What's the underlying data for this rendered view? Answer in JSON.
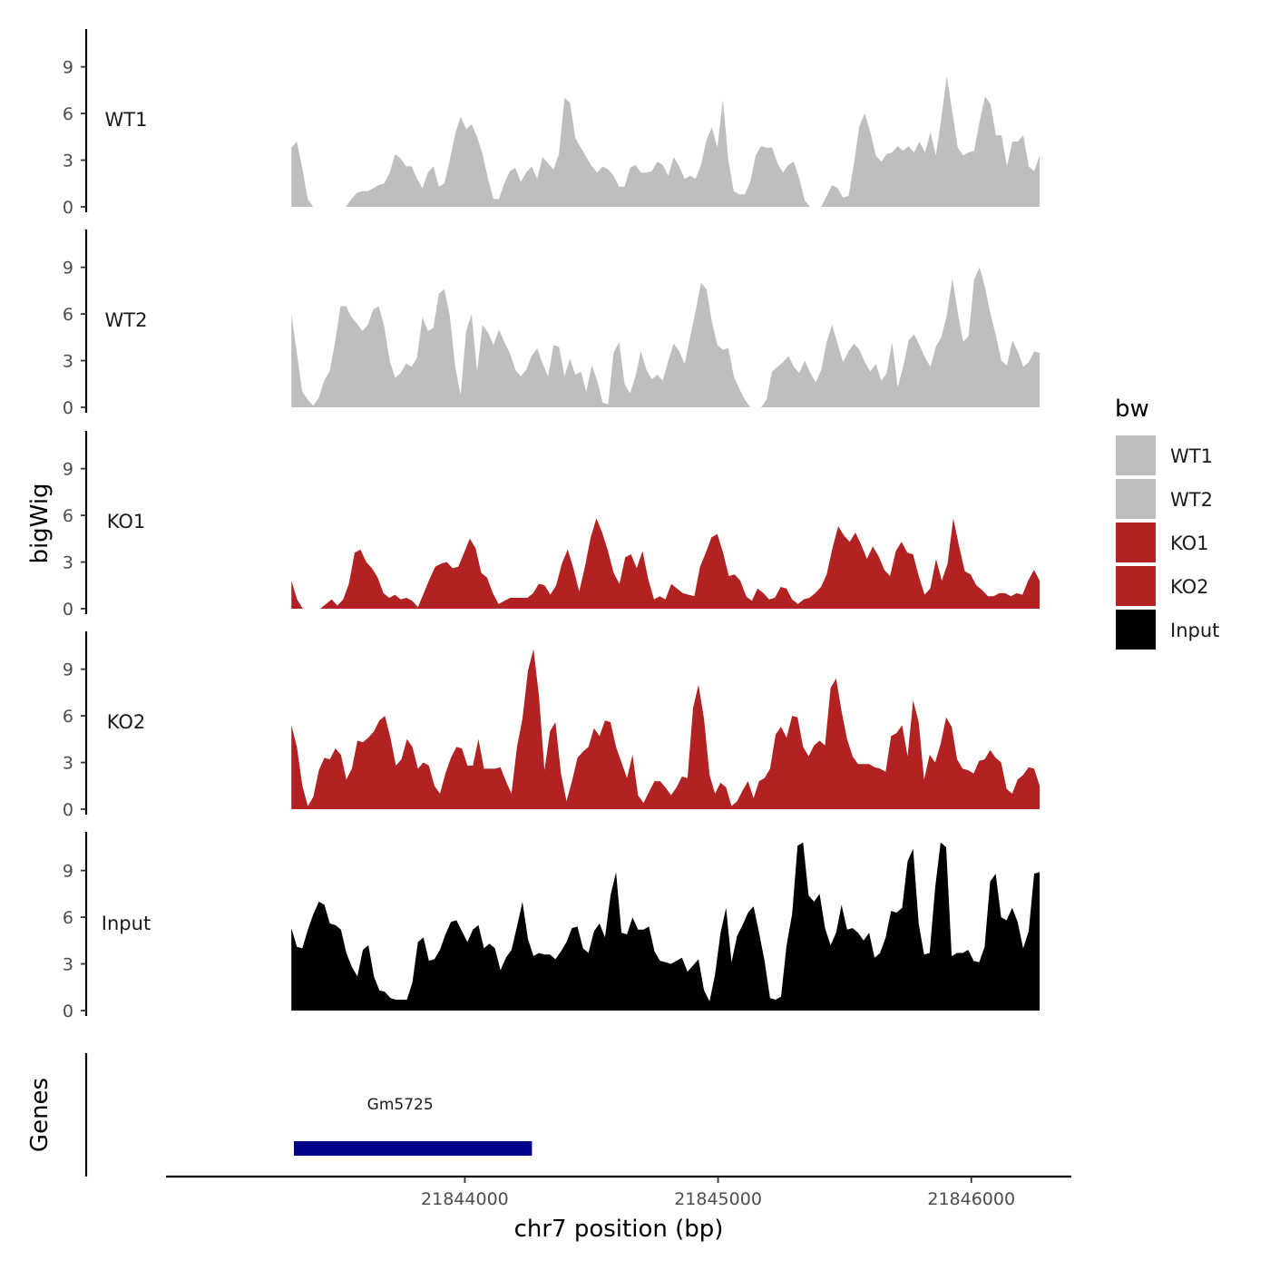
{
  "chart_data": {
    "type": "area",
    "ylabel": "bigWig",
    "genes_label": "Genes",
    "xlabel": "chr7 position (bp)",
    "x_range": [
      21843315,
      21846270
    ],
    "xlim": [
      21842820,
      21846395
    ],
    "ylim": [
      0,
      11.5
    ],
    "x_ticks": [
      21844000,
      21845000,
      21846000
    ],
    "x_tick_labels": [
      "21844000",
      "21845000",
      "21846000"
    ],
    "y_ticks": [
      0,
      3,
      6,
      9
    ],
    "y_tick_labels": [
      "0",
      "3",
      "6",
      "9"
    ],
    "legend_title": "bw",
    "legend": [
      {
        "label": "WT1",
        "color": "#bebebe"
      },
      {
        "label": "WT2",
        "color": "#bebebe"
      },
      {
        "label": "KO1",
        "color": "#b22222"
      },
      {
        "label": "KO2",
        "color": "#b22222"
      },
      {
        "label": "Input",
        "color": "#000000"
      }
    ],
    "series": [
      {
        "name": "WT1",
        "color": "#bebebe",
        "values": [
          3.8,
          4.2,
          2.5,
          0.5,
          0,
          0,
          0,
          0,
          0,
          0,
          0,
          0.5,
          0.9,
          1.0,
          1.0,
          1.2,
          1.4,
          1.5,
          2.2,
          3.4,
          3.1,
          2.6,
          2.6,
          1.8,
          1.2,
          2.2,
          2.6,
          1.3,
          1.5,
          3.0,
          4.7,
          5.8,
          5.0,
          5.3,
          4.5,
          3.4,
          1.8,
          0.5,
          0.5,
          1.5,
          2.3,
          2.5,
          1.6,
          2.2,
          2.6,
          1.8,
          3.2,
          2.8,
          2.4,
          3.4,
          7.0,
          6.7,
          4.4,
          3.8,
          3.2,
          2.6,
          2.2,
          2.6,
          2.4,
          2.0,
          1.3,
          1.3,
          2.5,
          2.7,
          2.2,
          2.2,
          2.3,
          2.9,
          2.7,
          2.0,
          3.2,
          2.6,
          1.8,
          2.0,
          1.8,
          2.7,
          4.3,
          5.1,
          3.8,
          6.9,
          3.0,
          1.0,
          0.8,
          0.8,
          1.6,
          3.3,
          3.9,
          3.8,
          3.8,
          2.8,
          2.2,
          2.7,
          2.9,
          1.8,
          0.4,
          0,
          0,
          0,
          0.7,
          1.4,
          1.2,
          0.6,
          0.7,
          2.8,
          5.2,
          6.0,
          4.8,
          3.3,
          2.9,
          3.4,
          3.5,
          3.9,
          3.6,
          3.9,
          3.5,
          4.2,
          3.5,
          4.8,
          3.3,
          5.7,
          8.4,
          6.1,
          3.8,
          3.3,
          3.5,
          3.6,
          5.5,
          7.1,
          6.6,
          4.6,
          4.6,
          2.6,
          4.2,
          4.2,
          4.6,
          2.6,
          2.3,
          3.3
        ]
      },
      {
        "name": "WT2",
        "color": "#bebebe",
        "values": [
          6.0,
          3.5,
          1.0,
          0.5,
          0.1,
          0.6,
          1.7,
          2.3,
          4.2,
          6.5,
          6.5,
          5.8,
          5.4,
          4.9,
          5.3,
          6.3,
          6.5,
          5.2,
          3.0,
          1.9,
          2.2,
          2.8,
          2.6,
          3.2,
          5.8,
          4.9,
          5.1,
          7.3,
          7.6,
          5.9,
          2.6,
          0.8,
          4.9,
          6.0,
          2.3,
          5.3,
          4.8,
          4.0,
          5.0,
          4.2,
          3.5,
          2.4,
          2.0,
          2.4,
          3.3,
          3.8,
          2.8,
          2.0,
          4.0,
          3.9,
          2.0,
          3.1,
          2.1,
          2.3,
          1.0,
          2.7,
          1.7,
          0.3,
          0.2,
          3.5,
          4.2,
          1.5,
          0.9,
          2.0,
          3.6,
          2.4,
          1.8,
          2.1,
          1.7,
          3.0,
          4.1,
          3.6,
          2.8,
          4.5,
          6.2,
          8.0,
          7.6,
          5.5,
          4.0,
          3.7,
          3.8,
          2.0,
          1.2,
          0.5,
          0,
          0,
          0,
          0.5,
          2.3,
          2.6,
          2.9,
          3.3,
          2.6,
          2.2,
          3.0,
          2.2,
          1.6,
          2.4,
          4.2,
          5.3,
          4.1,
          2.9,
          3.6,
          4.1,
          3.7,
          2.9,
          2.3,
          2.8,
          1.7,
          2.2,
          4.2,
          1.3,
          2.6,
          4.3,
          4.7,
          4.0,
          3.2,
          2.6,
          3.9,
          4.5,
          5.9,
          8.3,
          6.1,
          4.2,
          4.6,
          8.2,
          9.0,
          7.7,
          6.0,
          4.6,
          3.0,
          2.7,
          4.3,
          3.6,
          2.6,
          2.9,
          3.6,
          3.5
        ]
      },
      {
        "name": "KO1",
        "color": "#b22222",
        "values": [
          1.8,
          0.6,
          0,
          0,
          0,
          0,
          0.3,
          0.6,
          0.2,
          0.6,
          1.6,
          3.6,
          3.8,
          3.0,
          2.6,
          2.0,
          1.0,
          0.7,
          0.9,
          0.6,
          0.7,
          0.5,
          0.1,
          1.0,
          1.9,
          2.7,
          2.9,
          3.0,
          2.6,
          2.7,
          3.6,
          4.5,
          3.9,
          2.3,
          2.0,
          1.0,
          0.3,
          0.5,
          0.7,
          0.7,
          0.7,
          0.7,
          1.0,
          1.6,
          1.5,
          0.9,
          1.5,
          2.9,
          3.8,
          2.6,
          1.1,
          2.7,
          4.6,
          5.8,
          4.9,
          3.7,
          2.3,
          1.6,
          3.3,
          3.5,
          2.6,
          3.7,
          1.9,
          0.6,
          0.8,
          0.6,
          1.6,
          1.3,
          1.0,
          0.9,
          0.8,
          2.7,
          3.6,
          4.6,
          4.8,
          3.6,
          2.1,
          2.2,
          1.8,
          0.8,
          0.5,
          1.3,
          1.0,
          0.6,
          0.7,
          1.4,
          1.3,
          0.6,
          0.3,
          0.6,
          0.7,
          1.0,
          1.4,
          2.2,
          3.9,
          5.3,
          4.7,
          4.3,
          4.9,
          4.1,
          3.2,
          4.0,
          3.4,
          2.5,
          2.1,
          3.7,
          4.3,
          3.6,
          3.5,
          2.1,
          0.9,
          1.3,
          3.2,
          1.8,
          2.9,
          5.8,
          4.0,
          2.4,
          2.2,
          1.5,
          1.2,
          0.8,
          0.8,
          1.0,
          1.0,
          0.8,
          1.0,
          0.9,
          1.8,
          2.5,
          1.8
        ]
      },
      {
        "name": "KO2",
        "color": "#b22222",
        "values": [
          5.4,
          4.0,
          1.5,
          0.2,
          0.8,
          2.5,
          3.3,
          3.2,
          3.9,
          3.5,
          1.9,
          2.6,
          4.4,
          4.3,
          4.6,
          5.0,
          5.7,
          6.0,
          4.6,
          2.8,
          3.2,
          4.5,
          4.0,
          2.6,
          3.0,
          2.8,
          1.5,
          1.0,
          2.3,
          3.3,
          4.0,
          3.9,
          2.8,
          2.8,
          4.5,
          2.6,
          2.6,
          2.6,
          2.7,
          1.8,
          1.0,
          4.0,
          5.8,
          8.9,
          10.3,
          7.3,
          2.5,
          5.0,
          5.6,
          2.3,
          0.5,
          1.8,
          3.3,
          3.7,
          4.0,
          5.2,
          4.7,
          5.7,
          5.6,
          4.0,
          3.0,
          2.0,
          3.5,
          0.9,
          0.4,
          1.1,
          1.8,
          1.8,
          1.4,
          0.9,
          1.4,
          2.1,
          2.0,
          6.5,
          8.0,
          5.8,
          2.2,
          1.0,
          1.7,
          1.4,
          0.2,
          0.5,
          1.2,
          1.8,
          0.7,
          1.8,
          2.0,
          2.6,
          4.8,
          5.3,
          4.6,
          6.0,
          5.9,
          4.0,
          3.4,
          4.1,
          4.4,
          4.1,
          7.8,
          8.4,
          6.3,
          4.5,
          3.4,
          2.9,
          2.9,
          2.9,
          2.7,
          2.6,
          2.4,
          4.7,
          4.9,
          5.4,
          3.4,
          7.0,
          5.6,
          1.9,
          3.5,
          3.0,
          4.2,
          5.9,
          5.3,
          3.2,
          2.6,
          2.5,
          2.3,
          3.1,
          3.2,
          3.8,
          3.3,
          3.0,
          1.3,
          1.0,
          1.9,
          2.2,
          2.7,
          2.6,
          1.5
        ]
      },
      {
        "name": "Input",
        "color": "#000000",
        "values": [
          5.3,
          4.1,
          4.0,
          5.2,
          6.2,
          7.0,
          6.8,
          5.6,
          5.5,
          5.2,
          3.7,
          2.8,
          2.2,
          3.9,
          4.2,
          2.2,
          1.3,
          1.2,
          0.8,
          0.7,
          0.7,
          0.7,
          1.8,
          4.4,
          4.7,
          3.2,
          3.3,
          3.9,
          4.9,
          5.7,
          5.8,
          5.1,
          4.4,
          5.2,
          5.5,
          4.0,
          4.3,
          4.0,
          2.6,
          3.4,
          3.9,
          5.4,
          7.0,
          4.6,
          3.5,
          3.7,
          3.6,
          3.6,
          3.3,
          3.8,
          4.4,
          5.3,
          5.4,
          4.0,
          3.7,
          5.1,
          5.6,
          4.7,
          7.4,
          8.9,
          5.0,
          4.9,
          6.0,
          5.2,
          5.2,
          5.4,
          3.8,
          3.2,
          3.1,
          3.0,
          3.2,
          3.4,
          2.5,
          2.9,
          3.3,
          1.3,
          0.6,
          2.3,
          5.0,
          6.6,
          3.1,
          4.8,
          5.5,
          6.3,
          6.7,
          5.0,
          3.2,
          0.8,
          0.7,
          0.9,
          4.2,
          6.2,
          10.6,
          10.8,
          7.4,
          7.0,
          7.5,
          5.3,
          4.2,
          5.0,
          6.8,
          5.2,
          5.3,
          5.0,
          4.5,
          5.0,
          3.4,
          3.7,
          4.7,
          6.4,
          6.3,
          6.6,
          9.6,
          10.4,
          5.6,
          3.6,
          3.7,
          7.9,
          10.8,
          10.5,
          3.5,
          3.7,
          3.7,
          3.9,
          3.2,
          3.1,
          4.1,
          8.3,
          8.8,
          6.0,
          5.8,
          6.6,
          5.7,
          4.0,
          5.1,
          8.8,
          8.9
        ]
      }
    ],
    "genes": [
      {
        "name": "Gm5725",
        "start": 21843325,
        "end": 21844265,
        "color": "#00008b"
      }
    ]
  }
}
